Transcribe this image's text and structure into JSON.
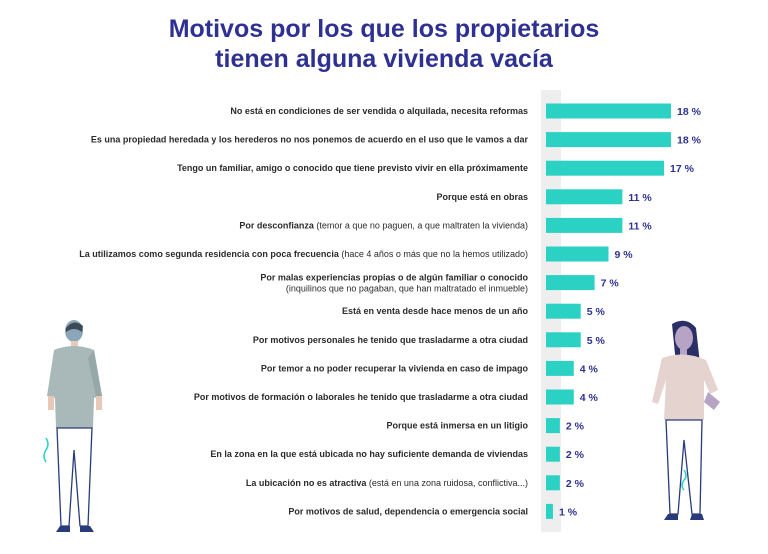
{
  "chart_data": {
    "type": "bar",
    "orientation": "horizontal",
    "title_lines": [
      "Motivos por los que los propietarios",
      "tienen alguna vivienda vacía"
    ],
    "xlim": [
      0,
      18
    ],
    "categories": [
      {
        "bold": "No está en condiciones de ser vendida o alquilada, necesita reformas",
        "normal": "",
        "normal2": ""
      },
      {
        "bold": "Es una propiedad heredada y los herederos no nos ponemos de acuerdo en el uso que le vamos a dar",
        "normal": "",
        "normal2": ""
      },
      {
        "bold": "Tengo un familiar, amigo o conocido que tiene previsto vivir en ella próximamente",
        "normal": "",
        "normal2": ""
      },
      {
        "bold": "Porque está en obras",
        "normal": "",
        "normal2": ""
      },
      {
        "bold": "Por desconfianza",
        "normal": " (temor a que no paguen, a que maltraten la vivienda)",
        "normal2": ""
      },
      {
        "bold": "La utilizamos como segunda residencia con poca frecuencia",
        "normal": " (hace 4 años o más que no la hemos utilizado)",
        "normal2": ""
      },
      {
        "bold": "Por malas experiencias propias o de algún familiar o conocido",
        "normal": "",
        "normal2": "(inquilinos que no pagaban, que han maltratado el inmueble)"
      },
      {
        "bold": "Está en venta desde hace menos de un año",
        "normal": "",
        "normal2": ""
      },
      {
        "bold": "Por motivos personales he tenido que trasladarme a otra ciudad",
        "normal": "",
        "normal2": ""
      },
      {
        "bold": "Por temor a no poder recuperar la vivienda en caso de impago",
        "normal": "",
        "normal2": ""
      },
      {
        "bold": "Por motivos de formación o laborales he tenido que trasladarme a otra ciudad",
        "normal": "",
        "normal2": ""
      },
      {
        "bold": "Porque está inmersa en un litigio",
        "normal": "",
        "normal2": ""
      },
      {
        "bold": "En la zona en la que está ubicada no hay suficiente demanda de viviendas",
        "normal": "",
        "normal2": ""
      },
      {
        "bold": "La ubicación no es atractiva",
        "normal": " (está en una zona ruidosa, conflictiva...)",
        "normal2": ""
      },
      {
        "bold": "Por motivos de salud, dependencia o emergencia social",
        "normal": "",
        "normal2": ""
      }
    ],
    "values": [
      18,
      18,
      17,
      11,
      11,
      9,
      7,
      5,
      5,
      4,
      4,
      2,
      2,
      2,
      1
    ],
    "value_labels": [
      "18 %",
      "18 %",
      "17 %",
      "11 %",
      "11 %",
      "9 %",
      "7 %",
      "5 %",
      "5 %",
      "4 %",
      "4 %",
      "2 %",
      "2 %",
      "2 %",
      "1 %"
    ],
    "colors": {
      "bar": "#2bd2c4",
      "panel": "#eeeeee",
      "value_text": "#2e3192",
      "title": "#2e3192"
    }
  },
  "illustrations": [
    "man-illustration",
    "woman-illustration"
  ]
}
